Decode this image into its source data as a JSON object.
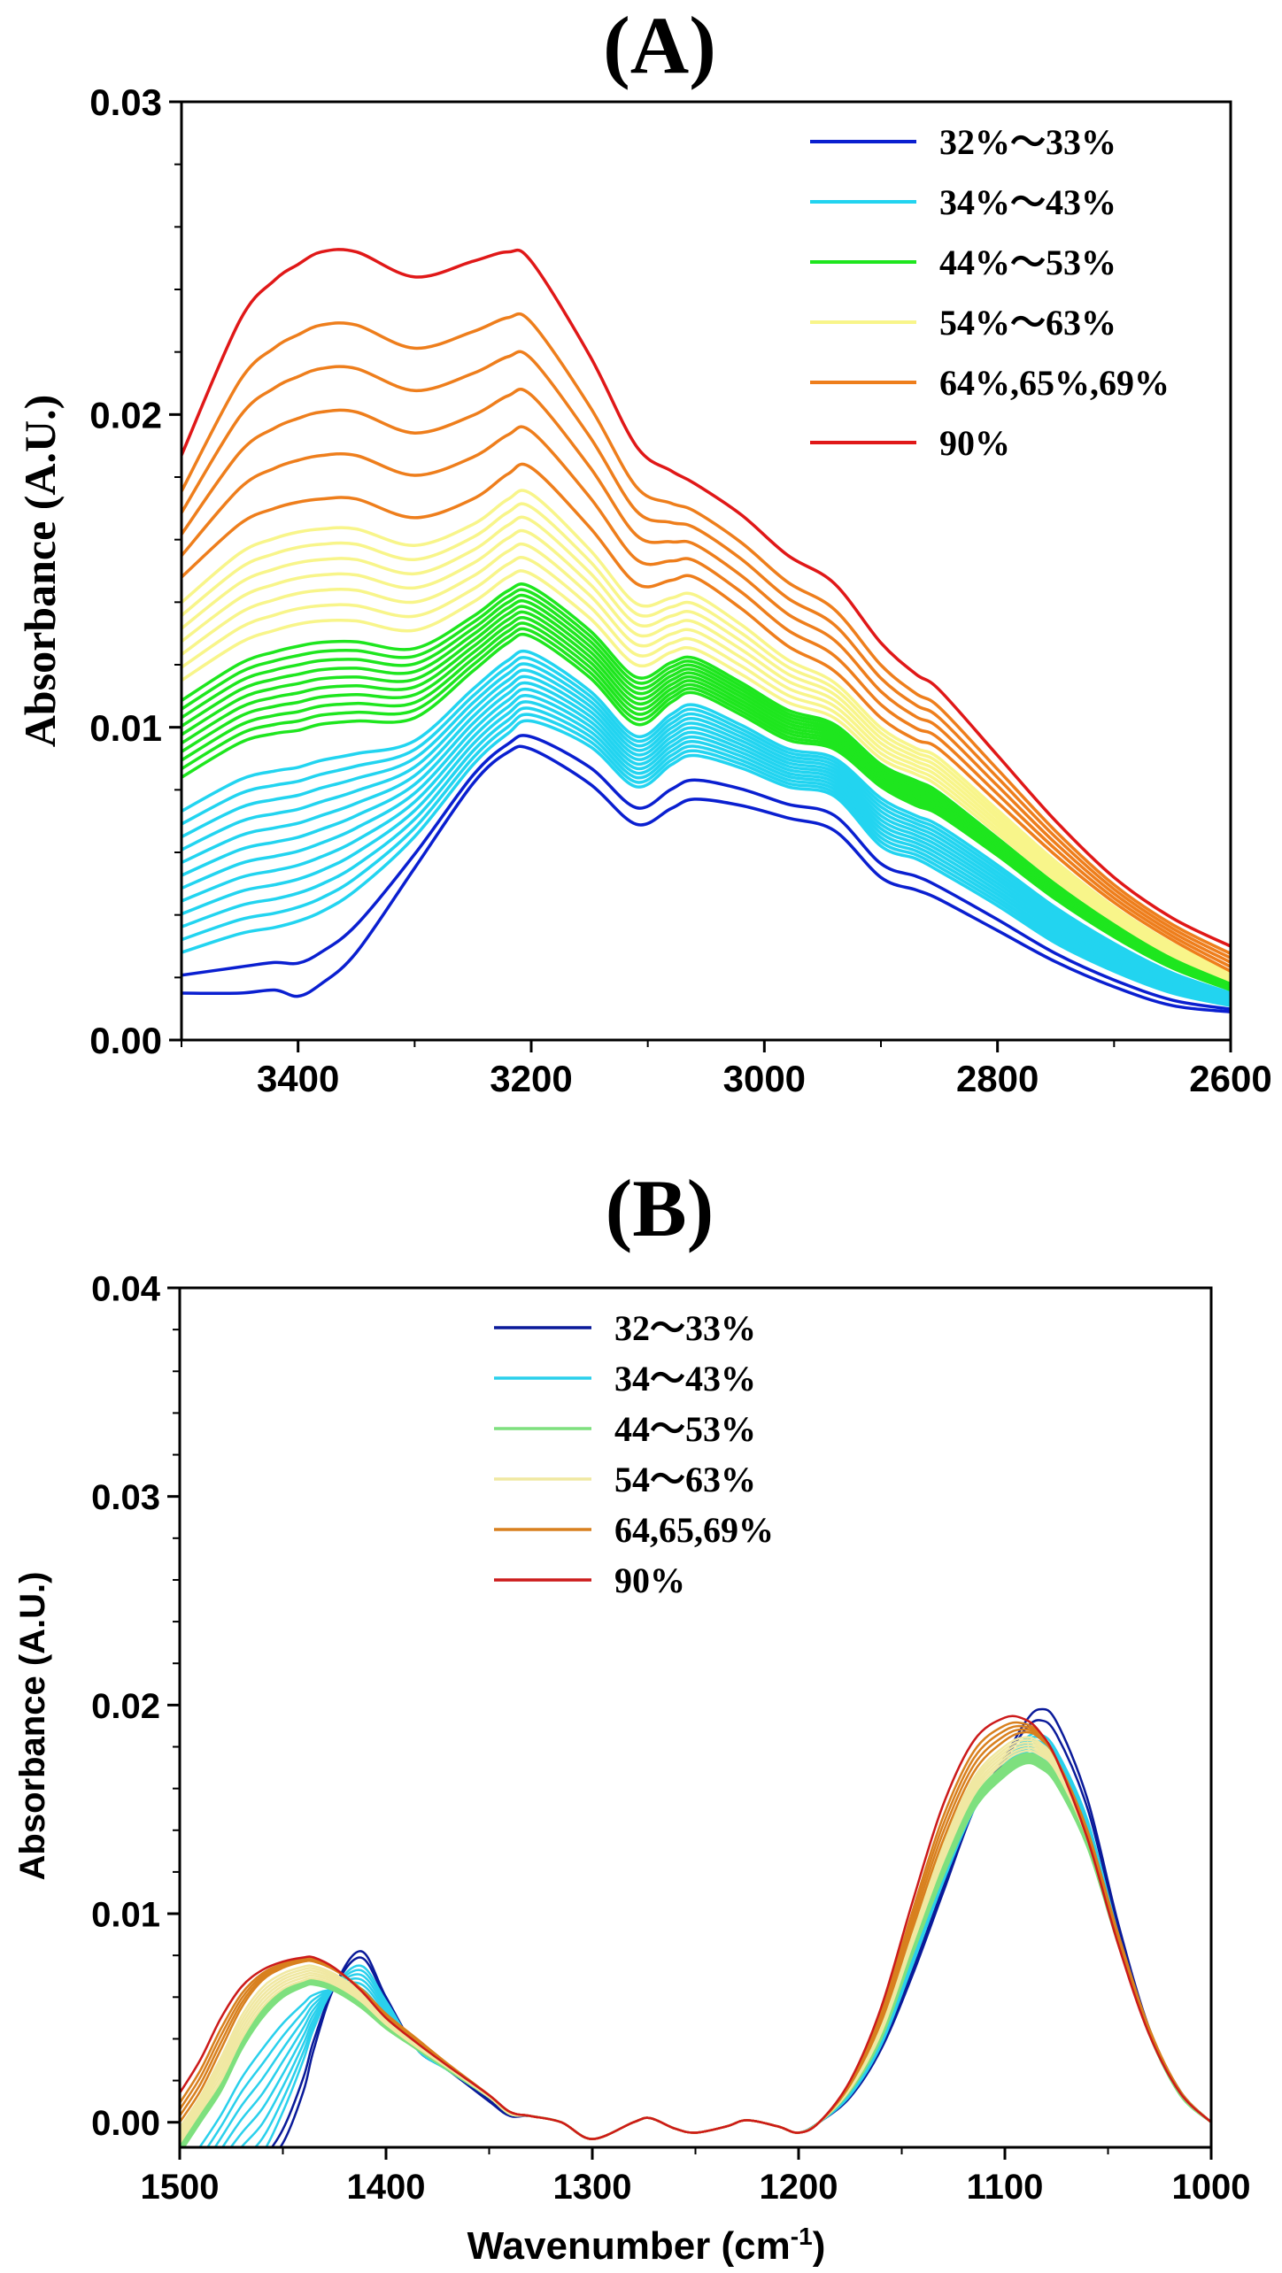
{
  "chart_data": [
    {
      "type": "line",
      "title": "(A)",
      "ylabel": "Absorbance (A.U.)",
      "xlabel": "",
      "xlim": [
        3500,
        2600
      ],
      "ylim": [
        0,
        0.03
      ],
      "x_ticks": [
        "3400",
        "3200",
        "3000",
        "2800",
        "2600"
      ],
      "y_ticks": [
        "0.00",
        "0.01",
        "0.02",
        "0.03"
      ],
      "grid": false,
      "legend_position": "top-right",
      "x": [
        3500,
        3450,
        3420,
        3400,
        3380,
        3350,
        3300,
        3250,
        3220,
        3200,
        3150,
        3110,
        3080,
        3060,
        3020,
        2980,
        2940,
        2900,
        2870,
        2850,
        2800,
        2750,
        2700,
        2650,
        2600
      ],
      "groups": [
        {
          "name": "32%～33%",
          "color": "#0a1fd0",
          "lines": 2
        },
        {
          "name": "34%～43%",
          "color": "#22d4f0",
          "lines": 12
        },
        {
          "name": "44%～53%",
          "color": "#1ee61e",
          "lines": 10
        },
        {
          "name": "54%～63%",
          "color": "#f8f58a",
          "lines": 7
        },
        {
          "name": "64%,65%,69%",
          "color": "#ee7e1c",
          "lines": 5
        },
        {
          "name": "90%",
          "color": "#e01818",
          "lines": 1
        }
      ],
      "series": [
        {
          "name": "32%～33%",
          "values": [
            0.0015,
            0.0015,
            0.0016,
            0.0014,
            0.0018,
            0.0028,
            0.0055,
            0.0082,
            0.0092,
            0.0093,
            0.0082,
            0.0069,
            0.0074,
            0.0077,
            0.0075,
            0.0071,
            0.0067,
            0.0052,
            0.0048,
            0.0045,
            0.0035,
            0.0025,
            0.0017,
            0.0011,
            0.0009
          ]
        },
        {
          "name": "34%～43%",
          "values": [
            0.0028,
            0.0034,
            0.0036,
            0.0038,
            0.0041,
            0.0048,
            0.0065,
            0.0088,
            0.0098,
            0.0102,
            0.0094,
            0.0081,
            0.0088,
            0.0091,
            0.0087,
            0.0081,
            0.0078,
            0.0062,
            0.0058,
            0.0054,
            0.0043,
            0.0031,
            0.0022,
            0.0015,
            0.0011
          ]
        },
        {
          "name": "44%～53%",
          "values": [
            0.0084,
            0.0095,
            0.0098,
            0.0099,
            0.0101,
            0.0102,
            0.0103,
            0.0118,
            0.0127,
            0.0129,
            0.0116,
            0.0101,
            0.0108,
            0.0111,
            0.0104,
            0.0096,
            0.0093,
            0.0081,
            0.0075,
            0.0072,
            0.0059,
            0.0045,
            0.0033,
            0.0023,
            0.0016
          ]
        },
        {
          "name": "54%～63%",
          "values": [
            0.0115,
            0.0127,
            0.0131,
            0.0133,
            0.0134,
            0.0134,
            0.0131,
            0.014,
            0.0148,
            0.0149,
            0.0135,
            0.012,
            0.0124,
            0.0125,
            0.0117,
            0.0108,
            0.0103,
            0.009,
            0.0085,
            0.0081,
            0.0066,
            0.0051,
            0.0038,
            0.0027,
            0.0019
          ]
        },
        {
          "name": "64%,65%,69%",
          "values": [
            0.0148,
            0.0165,
            0.017,
            0.0172,
            0.0173,
            0.0173,
            0.0167,
            0.0173,
            0.0181,
            0.0183,
            0.0164,
            0.0146,
            0.0147,
            0.0148,
            0.0138,
            0.0126,
            0.0118,
            0.0103,
            0.0096,
            0.0093,
            0.0076,
            0.0059,
            0.0044,
            0.0032,
            0.0022
          ]
        },
        {
          "name": "90%",
          "values": [
            0.0187,
            0.023,
            0.0243,
            0.0248,
            0.0252,
            0.0252,
            0.0244,
            0.0249,
            0.0252,
            0.0249,
            0.0219,
            0.019,
            0.0182,
            0.0178,
            0.0168,
            0.0155,
            0.0146,
            0.0127,
            0.0117,
            0.0112,
            0.0091,
            0.007,
            0.0052,
            0.0039,
            0.003
          ]
        }
      ]
    },
    {
      "type": "line",
      "title": "(B)",
      "ylabel": "Absorbance (A.U.)",
      "xlabel": "Wavenumber (cm",
      "xlabel_sup": "-1",
      "xlabel_end": ")",
      "xlim": [
        1500,
        1000
      ],
      "ylim": [
        -0.0012,
        0.04
      ],
      "x_ticks": [
        "1500",
        "1400",
        "1300",
        "1200",
        "1100",
        "1000"
      ],
      "y_ticks": [
        "0.00",
        "0.01",
        "0.02",
        "0.03",
        "0.04"
      ],
      "grid": false,
      "legend_position": "top-center",
      "x": [
        1500,
        1490,
        1480,
        1470,
        1460,
        1450,
        1440,
        1435,
        1425,
        1412,
        1400,
        1385,
        1370,
        1350,
        1340,
        1330,
        1315,
        1300,
        1280,
        1272,
        1260,
        1250,
        1235,
        1225,
        1210,
        1200,
        1190,
        1175,
        1160,
        1145,
        1130,
        1115,
        1100,
        1090,
        1083,
        1075,
        1060,
        1045,
        1030,
        1015,
        1000
      ],
      "groups": [
        {
          "name": "32～33%",
          "color": "#0a1a9a",
          "lines": 2
        },
        {
          "name": "34～43%",
          "color": "#2ad0ec",
          "lines": 8
        },
        {
          "name": "44～53%",
          "color": "#7ee07e",
          "lines": 8
        },
        {
          "name": "54～63%",
          "color": "#f0e8a2",
          "lines": 6
        },
        {
          "name": "64,65,69%",
          "color": "#d8801e",
          "lines": 4
        },
        {
          "name": "90%",
          "color": "#cc1a1a",
          "lines": 1
        }
      ],
      "series": [
        {
          "name": "32～33%",
          "values": [
            -0.008,
            -0.006,
            -0.004,
            -0.003,
            -0.002,
            -0.001,
            0.0015,
            0.0035,
            0.0065,
            0.0082,
            0.006,
            0.0035,
            0.0025,
            0.001,
            0.0003,
            0.0003,
            0.0,
            -0.0008,
            0.0,
            0.0002,
            -0.0003,
            -0.0005,
            -0.0002,
            0.0001,
            -0.0002,
            -0.0005,
            0.0,
            0.0012,
            0.0035,
            0.007,
            0.011,
            0.015,
            0.0175,
            0.0192,
            0.0198,
            0.0192,
            0.0155,
            0.0095,
            0.0045,
            0.0015,
            0.0
          ]
        },
        {
          "name": "34～43%",
          "values": [
            -0.006,
            -0.005,
            -0.0035,
            -0.0025,
            -0.0015,
            0.0005,
            0.003,
            0.0045,
            0.0065,
            0.0075,
            0.0058,
            0.0035,
            0.0025,
            0.0012,
            0.0004,
            0.0003,
            0.0,
            -0.0008,
            0.0,
            0.0002,
            -0.0003,
            -0.0005,
            -0.0002,
            0.0001,
            -0.0002,
            -0.0005,
            0.0,
            0.0013,
            0.0037,
            0.0075,
            0.0115,
            0.015,
            0.0172,
            0.0184,
            0.0186,
            0.0178,
            0.0145,
            0.009,
            0.0043,
            0.0014,
            0.0
          ]
        },
        {
          "name": "44～53%",
          "values": [
            -0.0015,
            0.0,
            0.0015,
            0.0035,
            0.005,
            0.006,
            0.0065,
            0.0066,
            0.0063,
            0.0055,
            0.0045,
            0.0035,
            0.0025,
            0.0012,
            0.0004,
            0.0003,
            0.0,
            -0.0008,
            0.0,
            0.0002,
            -0.0003,
            -0.0005,
            -0.0002,
            0.0001,
            -0.0002,
            -0.0005,
            0.0,
            0.0015,
            0.004,
            0.008,
            0.0118,
            0.015,
            0.0166,
            0.0172,
            0.017,
            0.0162,
            0.0132,
            0.0085,
            0.0042,
            0.0013,
            0.0
          ]
        },
        {
          "name": "54～63%",
          "values": [
            -0.001,
            0.0005,
            0.002,
            0.004,
            0.0055,
            0.0064,
            0.0068,
            0.0069,
            0.0066,
            0.0058,
            0.0047,
            0.0036,
            0.0026,
            0.0012,
            0.0004,
            0.0003,
            0.0,
            -0.0008,
            0.0,
            0.0002,
            -0.0003,
            -0.0005,
            -0.0002,
            0.0001,
            -0.0002,
            -0.0005,
            0.0,
            0.0016,
            0.0043,
            0.0085,
            0.0125,
            0.0157,
            0.0173,
            0.0178,
            0.0176,
            0.0168,
            0.0136,
            0.0087,
            0.0043,
            0.0014,
            0.0
          ]
        },
        {
          "name": "64,65,69%",
          "values": [
            0.0,
            0.0015,
            0.0035,
            0.0055,
            0.0068,
            0.0074,
            0.0077,
            0.0077,
            0.0073,
            0.0064,
            0.0052,
            0.004,
            0.0028,
            0.0013,
            0.0005,
            0.0003,
            0.0,
            -0.0008,
            0.0,
            0.0002,
            -0.0003,
            -0.0005,
            -0.0002,
            0.0001,
            -0.0002,
            -0.0005,
            0.0,
            0.0018,
            0.0048,
            0.0092,
            0.0135,
            0.0168,
            0.0183,
            0.0187,
            0.0184,
            0.0174,
            0.014,
            0.009,
            0.0045,
            0.0015,
            0.0
          ]
        },
        {
          "name": "90%",
          "values": [
            0.0014,
            0.003,
            0.005,
            0.0065,
            0.0073,
            0.0077,
            0.0079,
            0.0079,
            0.0074,
            0.0063,
            0.005,
            0.0038,
            0.0027,
            0.0013,
            0.0005,
            0.0003,
            0.0,
            -0.0008,
            0.0,
            0.0002,
            -0.0003,
            -0.0005,
            -0.0002,
            0.0001,
            -0.0002,
            -0.0005,
            0.0,
            0.002,
            0.0055,
            0.0105,
            0.0152,
            0.0183,
            0.0194,
            0.0193,
            0.0187,
            0.0174,
            0.0136,
            0.0085,
            0.0042,
            0.0014,
            0.0
          ]
        }
      ]
    }
  ]
}
